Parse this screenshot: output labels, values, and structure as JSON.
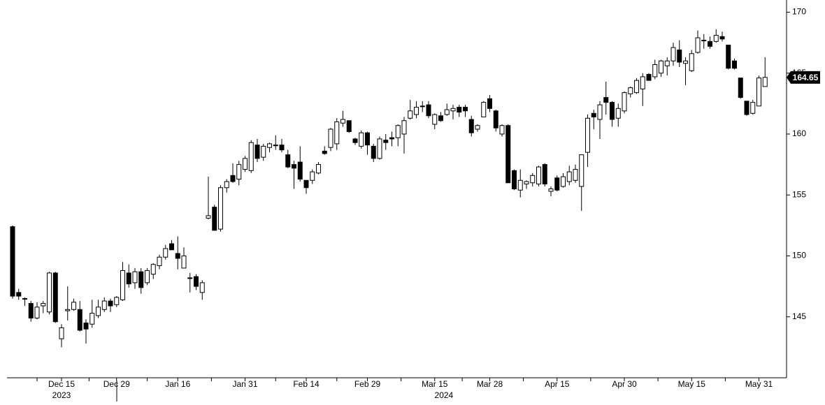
{
  "chart_data": {
    "type": "candlestick",
    "categories": [
      null,
      null,
      null,
      null,
      null,
      null,
      null,
      null,
      "Dec 15",
      null,
      null,
      null,
      null,
      null,
      null,
      null,
      null,
      "Dec 29",
      null,
      null,
      null,
      null,
      null,
      null,
      null,
      null,
      null,
      "Jan 16",
      null,
      null,
      null,
      null,
      null,
      null,
      null,
      null,
      null,
      null,
      "Jan 31",
      null,
      null,
      null,
      null,
      null,
      null,
      null,
      null,
      null,
      "Feb 14",
      null,
      null,
      null,
      null,
      null,
      null,
      null,
      null,
      null,
      "Feb 29",
      null,
      null,
      null,
      null,
      null,
      null,
      null,
      null,
      null,
      null,
      "Mar 15",
      null,
      null,
      null,
      null,
      null,
      null,
      null,
      null,
      "Mar 28",
      null,
      null,
      null,
      null,
      null,
      null,
      null,
      null,
      null,
      null,
      "Apr 15",
      null,
      null,
      null,
      null,
      null,
      null,
      null,
      null,
      null,
      null,
      "Apr 30",
      null,
      null,
      null,
      null,
      null,
      null,
      null,
      null,
      null,
      null,
      "May 15",
      null,
      null,
      null,
      null,
      null,
      null,
      null,
      null,
      null,
      null,
      "May 31",
      null
    ],
    "years": [
      "2023",
      "2024"
    ],
    "open": [
      152.4,
      147.0,
      146.5,
      146.1,
      144.9,
      145.9,
      145.4,
      148.6,
      143.2,
      145.5,
      145.6,
      145.6,
      144.5,
      144.4,
      145.1,
      145.6,
      146.3,
      146.0,
      146.4,
      148.6,
      147.8,
      148.7,
      147.8,
      148.5,
      149.2,
      149.9,
      151.0,
      150.2,
      149.0,
      148.2,
      148.3,
      147.0,
      153.1,
      154.0,
      152.2,
      155.6,
      156.6,
      156.3,
      157.1,
      157.0,
      159.1,
      158.1,
      158.9,
      159.1,
      159.1,
      158.3,
      157.5,
      157.7,
      156.2,
      156.2,
      156.8,
      158.6,
      158.9,
      159.2,
      160.9,
      161.1,
      159.6,
      159.0,
      160.1,
      159.0,
      158.0,
      159.5,
      159.7,
      159.7,
      160.0,
      161.3,
      161.6,
      162.3,
      162.4,
      160.8,
      161.5,
      161.6,
      161.9,
      162.2,
      162.2,
      161.2,
      160.4,
      161.4,
      162.9,
      161.9,
      160.0,
      160.7,
      157.0,
      155.4,
      155.9,
      156.0,
      155.9,
      157.5,
      155.3,
      156.4,
      155.7,
      156.1,
      156.2,
      155.7,
      158.5,
      161.7,
      161.2,
      163.0,
      162.6,
      161.3,
      161.9,
      163.3,
      163.4,
      163.7,
      164.9,
      164.7,
      165.0,
      165.6,
      166.0,
      166.9,
      165.8,
      165.2,
      166.7,
      167.7,
      167.6,
      167.6,
      168.0,
      167.3,
      166.0,
      164.6,
      162.7,
      161.7,
      162.3,
      163.9
    ],
    "high": [
      152.5,
      147.3,
      146.6,
      146.3,
      146.2,
      146.3,
      148.7,
      148.7,
      144.4,
      147.5,
      146.5,
      146.3,
      144.8,
      146.4,
      146.4,
      146.6,
      146.5,
      146.7,
      149.5,
      149.3,
      149.0,
      149.0,
      149.0,
      149.4,
      150.1,
      150.9,
      151.3,
      151.6,
      150.7,
      148.6,
      148.5,
      148.0,
      156.5,
      154.2,
      155.8,
      156.3,
      157.6,
      157.8,
      158.2,
      159.5,
      159.6,
      159.2,
      159.3,
      159.9,
      159.6,
      158.7,
      157.8,
      159.0,
      156.2,
      157.1,
      157.7,
      159.0,
      160.5,
      161.3,
      161.9,
      161.1,
      159.7,
      160.3,
      160.2,
      159.2,
      159.8,
      160.0,
      160.2,
      160.8,
      161.4,
      162.8,
      162.7,
      162.7,
      162.7,
      161.7,
      161.8,
      162.5,
      162.4,
      162.4,
      162.4,
      161.5,
      160.8,
      162.7,
      163.2,
      162.0,
      160.8,
      160.8,
      157.1,
      157.1,
      156.2,
      156.8,
      157.4,
      157.6,
      155.7,
      156.6,
      156.8,
      157.4,
      157.5,
      158.3,
      161.6,
      162.0,
      162.7,
      164.3,
      162.7,
      162.5,
      163.5,
      163.9,
      164.6,
      165.0,
      165.0,
      166.1,
      166.1,
      166.3,
      167.5,
      167.7,
      166.3,
      166.9,
      168.5,
      168.2,
      168.0,
      168.6,
      168.4,
      167.3,
      166.2,
      164.6,
      162.7,
      162.8,
      164.8,
      166.3
    ],
    "low": [
      146.5,
      146.4,
      145.9,
      144.6,
      144.8,
      145.3,
      145.2,
      144.5,
      142.5,
      144.7,
      145.5,
      143.8,
      142.8,
      144.1,
      144.9,
      145.4,
      145.4,
      145.8,
      146.3,
      147.4,
      147.3,
      146.9,
      147.6,
      148.1,
      148.9,
      149.7,
      150.5,
      148.9,
      149.0,
      147.0,
      147.2,
      146.4,
      153.0,
      152.1,
      152.0,
      155.2,
      156.0,
      155.8,
      156.9,
      156.8,
      157.7,
      157.8,
      158.5,
      158.7,
      158.5,
      157.2,
      155.5,
      156.1,
      155.1,
      155.9,
      156.7,
      158.3,
      158.6,
      158.7,
      160.6,
      160.1,
      159.1,
      158.8,
      158.3,
      157.7,
      157.9,
      158.7,
      159.0,
      159.0,
      158.4,
      161.2,
      161.3,
      161.8,
      161.3,
      160.4,
      161.0,
      161.5,
      161.2,
      161.4,
      161.4,
      159.8,
      160.2,
      161.4,
      161.8,
      160.2,
      159.8,
      156.0,
      155.4,
      154.8,
      155.5,
      155.7,
      155.7,
      155.7,
      154.9,
      155.3,
      155.6,
      155.8,
      156.0,
      153.7,
      157.3,
      160.4,
      159.6,
      161.6,
      160.6,
      160.6,
      161.7,
      163.0,
      163.3,
      162.3,
      164.4,
      164.5,
      164.7,
      164.8,
      165.6,
      165.5,
      164.0,
      165.1,
      166.6,
      167.0,
      167.0,
      167.5,
      167.6,
      165.3,
      165.3,
      162.9,
      161.5,
      161.6,
      162.3,
      163.9
    ],
    "close": [
      146.7,
      146.7,
      146.5,
      144.9,
      145.8,
      146.1,
      148.6,
      144.6,
      144.1,
      145.6,
      146.2,
      143.9,
      144.0,
      145.3,
      145.8,
      146.3,
      145.9,
      146.6,
      148.8,
      147.7,
      148.7,
      147.4,
      148.8,
      149.3,
      149.9,
      150.6,
      150.5,
      149.8,
      150.0,
      148.2,
      147.5,
      147.8,
      153.3,
      152.1,
      155.6,
      156.1,
      156.1,
      157.5,
      158.0,
      159.3,
      158.0,
      159.0,
      159.2,
      159.1,
      158.7,
      157.3,
      157.2,
      156.3,
      155.6,
      156.9,
      157.5,
      158.4,
      160.4,
      161.0,
      161.2,
      160.2,
      159.3,
      160.1,
      159.1,
      158.0,
      159.6,
      159.3,
      159.6,
      160.7,
      161.1,
      161.9,
      162.2,
      162.3,
      161.5,
      161.6,
      161.1,
      162.0,
      162.1,
      161.8,
      161.9,
      160.1,
      160.7,
      162.6,
      162.1,
      160.5,
      160.7,
      156.0,
      155.5,
      156.2,
      156.1,
      156.6,
      157.3,
      155.9,
      155.5,
      155.4,
      156.5,
      156.9,
      157.1,
      158.3,
      161.3,
      161.4,
      162.4,
      162.6,
      161.2,
      162.1,
      163.4,
      163.8,
      164.4,
      164.7,
      164.4,
      165.7,
      166.0,
      166.0,
      167.1,
      165.9,
      166.0,
      166.6,
      167.9,
      167.7,
      167.2,
      168.1,
      167.8,
      165.4,
      165.4,
      163.0,
      161.6,
      162.6,
      164.6,
      164.65
    ],
    "up_color": "#ffffff",
    "down_color": "#000000",
    "ylim": [
      140,
      171
    ],
    "yticks": [
      145,
      150,
      155,
      160,
      165,
      170
    ],
    "last_value": 164.65
  }
}
